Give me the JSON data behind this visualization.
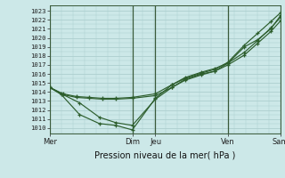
{
  "bg_color": "#cce8e8",
  "grid_color": "#aacccc",
  "line_color": "#2d5e2d",
  "marker_color": "#2d5e2d",
  "title": "Pression niveau de la mer( hPa )",
  "ylabel_ticks": [
    1010,
    1011,
    1012,
    1013,
    1014,
    1015,
    1016,
    1017,
    1018,
    1019,
    1020,
    1021,
    1022,
    1023
  ],
  "ylim": [
    1009.4,
    1023.6
  ],
  "xlim": [
    0.0,
    7.0
  ],
  "vlines_x": [
    0.0,
    2.5,
    3.2,
    5.4,
    7.0
  ],
  "xtick_labels": [
    "Mer",
    "Dim",
    "Jeu",
    "Ven",
    "Sam"
  ],
  "xtick_pos": [
    0.0,
    2.5,
    3.2,
    5.4,
    7.0
  ],
  "series": [
    {
      "x": [
        0.0,
        0.35,
        0.9,
        1.5,
        2.0,
        2.5,
        3.2,
        3.7,
        4.1,
        4.6,
        5.0,
        5.4,
        5.9,
        6.3,
        6.7,
        7.0
      ],
      "y": [
        1014.5,
        1013.7,
        1011.5,
        1010.5,
        1010.3,
        1009.8,
        1013.3,
        1014.8,
        1015.5,
        1016.1,
        1016.5,
        1017.3,
        1019.2,
        1020.5,
        1021.8,
        1022.8
      ]
    },
    {
      "x": [
        0.0,
        0.35,
        0.9,
        1.5,
        2.0,
        2.5,
        3.2,
        3.7,
        4.1,
        4.6,
        5.0,
        5.4,
        5.9,
        6.3,
        6.7,
        7.0
      ],
      "y": [
        1014.5,
        1013.8,
        1012.8,
        1011.2,
        1010.6,
        1010.3,
        1013.2,
        1014.5,
        1015.3,
        1015.9,
        1016.3,
        1017.2,
        1019.0,
        1019.8,
        1021.0,
        1022.5
      ]
    },
    {
      "x": [
        0.0,
        0.4,
        0.8,
        1.2,
        1.6,
        2.0,
        2.5,
        3.2,
        3.7,
        4.1,
        4.6,
        5.0,
        5.4,
        5.9,
        6.3,
        6.7,
        7.0
      ],
      "y": [
        1014.5,
        1013.8,
        1013.5,
        1013.4,
        1013.3,
        1013.3,
        1013.4,
        1013.8,
        1014.8,
        1015.6,
        1016.2,
        1016.6,
        1017.2,
        1018.4,
        1019.7,
        1021.1,
        1022.3
      ]
    },
    {
      "x": [
        0.0,
        0.4,
        0.8,
        1.2,
        1.6,
        2.0,
        2.5,
        3.2,
        3.7,
        4.1,
        4.6,
        5.0,
        5.4,
        5.9,
        6.3,
        6.7,
        7.0
      ],
      "y": [
        1014.5,
        1013.7,
        1013.4,
        1013.3,
        1013.2,
        1013.2,
        1013.3,
        1013.6,
        1014.5,
        1015.4,
        1016.0,
        1016.3,
        1017.0,
        1018.1,
        1019.4,
        1020.7,
        1021.9
      ]
    }
  ]
}
